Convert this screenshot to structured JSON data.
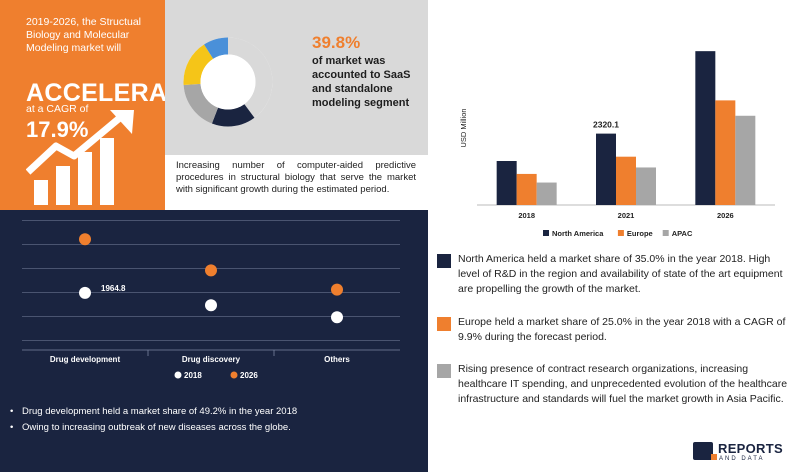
{
  "orange_panel": {
    "intro": "2019-2026, the Structual Biology and Molecular Modeling market will",
    "headline": "ACCELERATE",
    "cagr_label": "at a CAGR of",
    "cagr_value": "17.9%",
    "icon": "growth-chart-icon"
  },
  "share": {
    "value": "39.8%",
    "text": "of market was accounted to SaaS and standalone modeling segment"
  },
  "driver_text": "Increasing number of computer-aided predictive procedures in structural biology that serve the market with significant growth during the estimated period.",
  "notes": [
    {
      "color": "#1a2440",
      "text": "North America held a market share of 35.0% in the year 2018. High level of R&D in the region and availability of state of the art equipment are propelling the growth of the market."
    },
    {
      "color": "#ef7f2e",
      "text": "Europe held a market share of 25.0% in the year 2018 with a CAGR of 9.9% during the forecast period."
    },
    {
      "color": "#a6a6a6",
      "text": "Rising presence of contract research organizations, increasing healthcare IT spending, and unprecedented evolution of the healthcare infrastructure and standards will fuel the market growth in Asia Pacific."
    }
  ],
  "bullets": [
    "Drug development held a market share of 49.2% in the year 2018",
    "Owing to increasing outbreak of new diseases across the globe."
  ],
  "logo": {
    "word": "REPORTS",
    "sub": "AND DATA"
  },
  "chart_data": [
    {
      "type": "pie",
      "title": "",
      "donut": true,
      "series": [
        {
          "value": 39.8,
          "color": "#d9d9d9"
        },
        {
          "value": 16,
          "color": "#1a2440"
        },
        {
          "value": 18,
          "color": "#a6a6a6"
        },
        {
          "value": 17,
          "color": "#f5c518"
        },
        {
          "value": 9.2,
          "color": "#4a90d9"
        }
      ]
    },
    {
      "type": "bar",
      "title": "",
      "ylabel": "USD Million",
      "xlabel": "",
      "categories": [
        "2018",
        "2021",
        "2026"
      ],
      "ylim": [
        0,
        5200
      ],
      "legend_position": "bottom",
      "series": [
        {
          "name": "North America",
          "color": "#1a2440",
          "values": [
            1430,
            2320.1,
            5000
          ]
        },
        {
          "name": "Europe",
          "color": "#ef7f2e",
          "values": [
            1010,
            1570,
            3400
          ]
        },
        {
          "name": "APAC",
          "color": "#a6a6a6",
          "values": [
            730,
            1220,
            2900
          ]
        }
      ],
      "data_labels": [
        {
          "category": "2021",
          "series": "North America",
          "text": "2320.1"
        }
      ]
    },
    {
      "type": "scatter",
      "title": "",
      "categories": [
        "Drug development",
        "Drug discovery",
        "Others"
      ],
      "ylim": [
        0,
        5000
      ],
      "series": [
        {
          "name": "2018",
          "color": "#ffffff",
          "values": [
            1964.8,
            1450,
            950
          ]
        },
        {
          "name": "2026",
          "color": "#ef7f2e",
          "values": [
            4200,
            2900,
            2100
          ]
        }
      ],
      "data_labels": [
        {
          "category": "Drug development",
          "series": "2018",
          "text": "1964.8"
        }
      ],
      "legend_position": "bottom"
    }
  ]
}
